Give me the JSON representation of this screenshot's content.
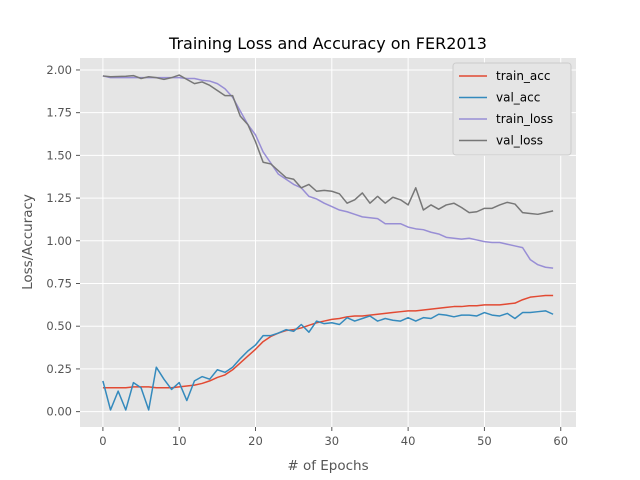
{
  "chart_data": {
    "type": "line",
    "title": "Training Loss and Accuracy on FER2013",
    "xlabel": "# of Epochs",
    "ylabel": "Loss/Accuracy",
    "xlim": [
      -3,
      62
    ],
    "ylim": [
      -0.09,
      2.07
    ],
    "xticks": [
      0,
      10,
      20,
      30,
      40,
      50,
      60
    ],
    "yticks": [
      0.0,
      0.25,
      0.5,
      0.75,
      1.0,
      1.25,
      1.5,
      1.75,
      2.0
    ],
    "ytick_labels": [
      "0.00",
      "0.25",
      "0.50",
      "0.75",
      "1.00",
      "1.25",
      "1.50",
      "1.75",
      "2.00"
    ],
    "grid": true,
    "legend_position": "top-right",
    "x": [
      0,
      1,
      2,
      3,
      4,
      5,
      6,
      7,
      8,
      9,
      10,
      11,
      12,
      13,
      14,
      15,
      16,
      17,
      18,
      19,
      20,
      21,
      22,
      23,
      24,
      25,
      26,
      27,
      28,
      29,
      30,
      31,
      32,
      33,
      34,
      35,
      36,
      37,
      38,
      39,
      40,
      41,
      42,
      43,
      44,
      45,
      46,
      47,
      48,
      49,
      50,
      51,
      52,
      53,
      54,
      55,
      56,
      57,
      58,
      59
    ],
    "series": [
      {
        "name": "train_acc",
        "color": "#e24a33",
        "values": [
          0.14,
          0.14,
          0.14,
          0.14,
          0.145,
          0.145,
          0.145,
          0.14,
          0.14,
          0.14,
          0.145,
          0.15,
          0.155,
          0.165,
          0.18,
          0.2,
          0.215,
          0.245,
          0.285,
          0.325,
          0.365,
          0.41,
          0.44,
          0.46,
          0.475,
          0.48,
          0.49,
          0.505,
          0.52,
          0.53,
          0.54,
          0.545,
          0.555,
          0.56,
          0.56,
          0.565,
          0.57,
          0.575,
          0.58,
          0.585,
          0.59,
          0.59,
          0.595,
          0.6,
          0.605,
          0.61,
          0.615,
          0.615,
          0.62,
          0.62,
          0.625,
          0.625,
          0.625,
          0.63,
          0.635,
          0.655,
          0.67,
          0.675,
          0.68,
          0.68
        ]
      },
      {
        "name": "val_acc",
        "color": "#348abd",
        "values": [
          0.18,
          0.01,
          0.12,
          0.01,
          0.17,
          0.14,
          0.01,
          0.26,
          0.19,
          0.13,
          0.17,
          0.065,
          0.18,
          0.205,
          0.19,
          0.245,
          0.23,
          0.26,
          0.31,
          0.355,
          0.39,
          0.445,
          0.445,
          0.46,
          0.48,
          0.47,
          0.51,
          0.465,
          0.53,
          0.515,
          0.52,
          0.51,
          0.55,
          0.53,
          0.545,
          0.56,
          0.53,
          0.545,
          0.535,
          0.53,
          0.55,
          0.53,
          0.55,
          0.545,
          0.57,
          0.565,
          0.555,
          0.565,
          0.565,
          0.56,
          0.58,
          0.565,
          0.56,
          0.575,
          0.545,
          0.58,
          0.58,
          0.585,
          0.59,
          0.57
        ]
      },
      {
        "name": "train_loss",
        "color": "#988ed5",
        "values": [
          1.965,
          1.955,
          1.955,
          1.955,
          1.955,
          1.955,
          1.955,
          1.955,
          1.955,
          1.955,
          1.955,
          1.95,
          1.95,
          1.94,
          1.935,
          1.92,
          1.89,
          1.84,
          1.76,
          1.68,
          1.62,
          1.52,
          1.455,
          1.39,
          1.36,
          1.33,
          1.31,
          1.26,
          1.245,
          1.22,
          1.2,
          1.18,
          1.17,
          1.155,
          1.14,
          1.135,
          1.13,
          1.1,
          1.1,
          1.1,
          1.08,
          1.07,
          1.065,
          1.05,
          1.04,
          1.02,
          1.015,
          1.01,
          1.015,
          1.005,
          0.995,
          0.99,
          0.99,
          0.98,
          0.97,
          0.96,
          0.89,
          0.86,
          0.845,
          0.84
        ]
      },
      {
        "name": "val_loss",
        "color": "#777777",
        "values": [
          1.965,
          1.96,
          1.962,
          1.963,
          1.967,
          1.95,
          1.96,
          1.955,
          1.945,
          1.955,
          1.97,
          1.945,
          1.92,
          1.93,
          1.91,
          1.88,
          1.85,
          1.85,
          1.73,
          1.68,
          1.58,
          1.46,
          1.45,
          1.41,
          1.37,
          1.36,
          1.31,
          1.33,
          1.29,
          1.295,
          1.29,
          1.275,
          1.22,
          1.24,
          1.28,
          1.22,
          1.26,
          1.22,
          1.255,
          1.24,
          1.21,
          1.31,
          1.18,
          1.21,
          1.185,
          1.21,
          1.22,
          1.195,
          1.165,
          1.17,
          1.19,
          1.19,
          1.21,
          1.225,
          1.215,
          1.165,
          1.16,
          1.155,
          1.165,
          1.175
        ]
      }
    ]
  }
}
